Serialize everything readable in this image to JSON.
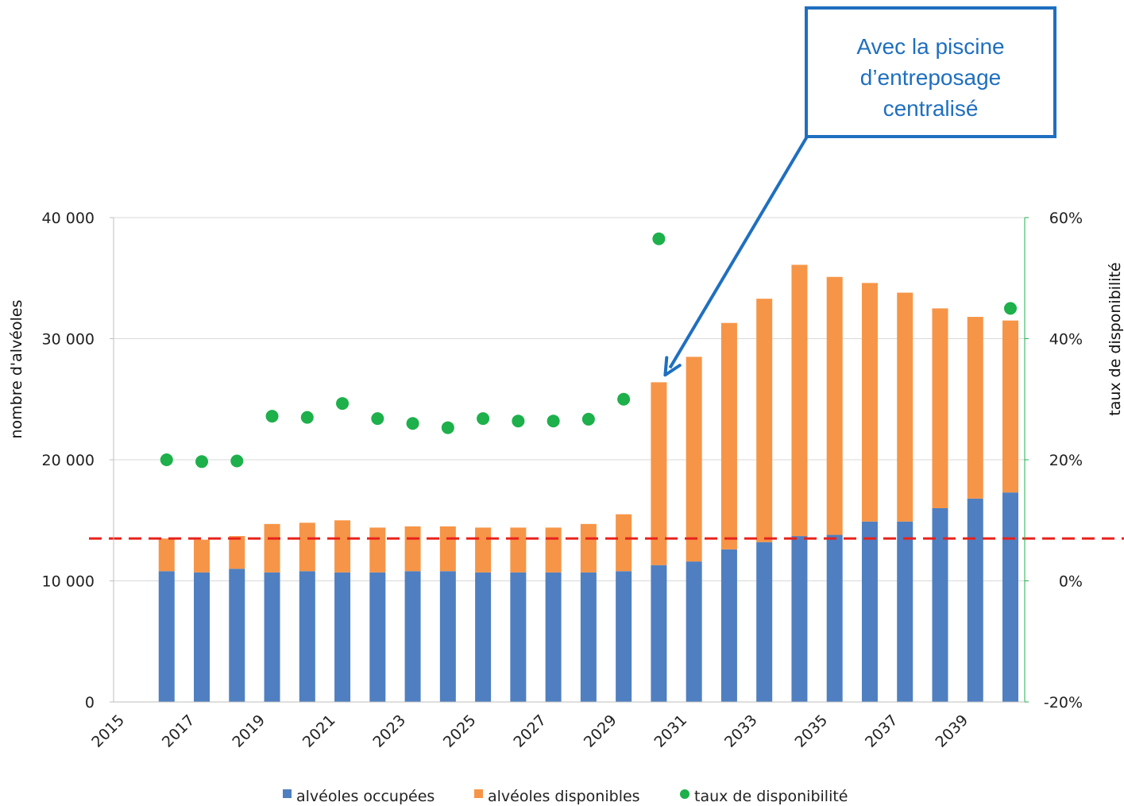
{
  "chart_data": {
    "type": "bar",
    "stacked": true,
    "years": [
      2015,
      2016,
      2017,
      2018,
      2019,
      2020,
      2021,
      2022,
      2023,
      2024,
      2025,
      2026,
      2027,
      2028,
      2029,
      2030,
      2031,
      2032,
      2033,
      2034,
      2035,
      2036,
      2037,
      2038,
      2039,
      2040
    ],
    "x_tick_labels": [
      "2015",
      "2017",
      "2019",
      "2021",
      "2023",
      "2025",
      "2027",
      "2029",
      "2031",
      "2033",
      "2035",
      "2037",
      "2039"
    ],
    "series": [
      {
        "name": "alvéoles occupées",
        "color": "#4f7fc0",
        "axis": "left",
        "values": [
          null,
          10800,
          10700,
          11000,
          10700,
          10800,
          10700,
          10700,
          10800,
          10800,
          10700,
          10700,
          10700,
          10700,
          10800,
          11300,
          11600,
          12600,
          13200,
          13700,
          13800,
          14900,
          14900,
          16000,
          16800,
          17300
        ]
      },
      {
        "name": "alvéoles disponibles",
        "color": "#f69547",
        "axis": "left",
        "values": [
          null,
          2700,
          2700,
          2700,
          4000,
          4000,
          4300,
          3700,
          3700,
          3700,
          3700,
          3700,
          3700,
          4000,
          4700,
          15100,
          16900,
          18700,
          20100,
          22400,
          21300,
          19700,
          18900,
          16500,
          15000,
          14200
        ]
      },
      {
        "name": "taux de disponibilité",
        "color": "#1db04b",
        "axis": "right",
        "type": "scatter",
        "values": [
          null,
          20,
          19.7,
          19.8,
          27.2,
          27,
          29.3,
          26.8,
          26,
          25.3,
          26.8,
          26.4,
          26.4,
          26.7,
          30,
          56.5,
          null,
          null,
          null,
          null,
          null,
          null,
          null,
          null,
          null,
          45
        ]
      }
    ],
    "left_axis": {
      "title": "nombre d'alvéoles",
      "ylim": [
        0,
        40000
      ],
      "tick_labels": [
        "0",
        "10 000",
        "20 000",
        "30 000",
        "40 000"
      ],
      "tick_values": [
        0,
        10000,
        20000,
        30000,
        40000
      ]
    },
    "right_axis": {
      "title": "taux de disponibilité",
      "ylim": [
        -20,
        60
      ],
      "tick_labels": [
        "-20%",
        "0%",
        "20%",
        "40%",
        "60%"
      ],
      "tick_values": [
        -20,
        0,
        20,
        40,
        60
      ]
    },
    "reference_line": {
      "value": 13500,
      "axis": "left",
      "color": "#e8211b",
      "style": "dashed"
    },
    "annotation": {
      "lines": [
        "Avec la piscine",
        "d’entreposage",
        "centralisé"
      ],
      "color": "#1f6fbf",
      "points_to_year": 2030
    },
    "legend": {
      "position": "bottom"
    },
    "grid": {
      "horizontal": true
    }
  }
}
